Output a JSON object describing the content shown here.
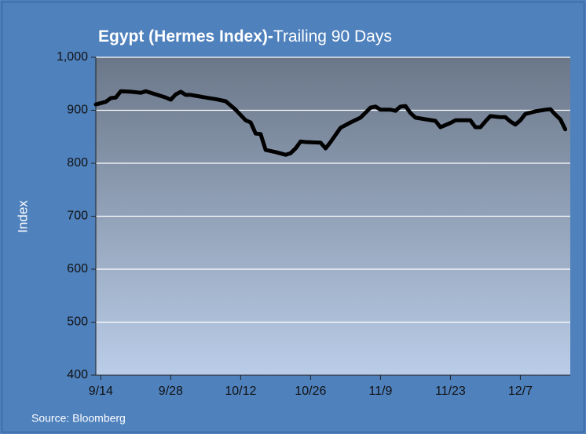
{
  "chart_data": {
    "type": "line",
    "title": [
      "Egypt (Hermes Index)-",
      "Trailing 90 Days"
    ],
    "ylabel": "Index",
    "source": "Source: Bloomberg",
    "x": [
      "9/13",
      "9/15",
      "9/16",
      "9/17",
      "9/18",
      "9/20",
      "9/22",
      "9/23",
      "9/25",
      "9/27",
      "9/28",
      "9/29",
      "9/30",
      "10/1",
      "10/2",
      "10/5",
      "10/7",
      "10/9",
      "10/11",
      "10/13",
      "10/14",
      "10/15",
      "10/16",
      "10/17",
      "10/19",
      "10/21",
      "10/22",
      "10/23",
      "10/24",
      "10/25",
      "10/28",
      "10/29",
      "10/30",
      "11/1",
      "11/3",
      "11/5",
      "11/7",
      "11/8",
      "11/9",
      "11/11",
      "11/12",
      "11/13",
      "11/14",
      "11/15",
      "11/16",
      "11/18",
      "11/20",
      "11/21",
      "11/23",
      "11/24",
      "11/27",
      "11/28",
      "11/29",
      "11/30",
      "12/1",
      "12/3",
      "12/4",
      "12/5",
      "12/6",
      "12/7",
      "12/8",
      "12/10",
      "12/12",
      "12/13",
      "12/14",
      "12/15",
      "12/16"
    ],
    "series": [
      {
        "name": "Hermes Index",
        "color": "#000000",
        "values": [
          911,
          916,
          923,
          924,
          936,
          935,
          933,
          936,
          930,
          924,
          920,
          930,
          935,
          929,
          929,
          924,
          921,
          917,
          901,
          881,
          877,
          856,
          855,
          825,
          821,
          816,
          819,
          828,
          841,
          840,
          839,
          828,
          840,
          867,
          877,
          886,
          905,
          907,
          901,
          901,
          899,
          907,
          908,
          895,
          886,
          883,
          880,
          868,
          876,
          881,
          881,
          868,
          868,
          879,
          889,
          887,
          887,
          879,
          873,
          881,
          893,
          898,
          901,
          902,
          892,
          883,
          864
        ]
      }
    ],
    "xlim": [
      "9/13",
      "12/17"
    ],
    "xticks": [
      "9/14",
      "9/28",
      "10/12",
      "10/26",
      "11/9",
      "11/23",
      "12/7"
    ],
    "ylim": [
      400,
      1000
    ],
    "yticks": [
      400,
      500,
      600,
      700,
      800,
      900,
      {
        "value": 1000,
        "label": "1,000"
      }
    ],
    "grid": true
  }
}
